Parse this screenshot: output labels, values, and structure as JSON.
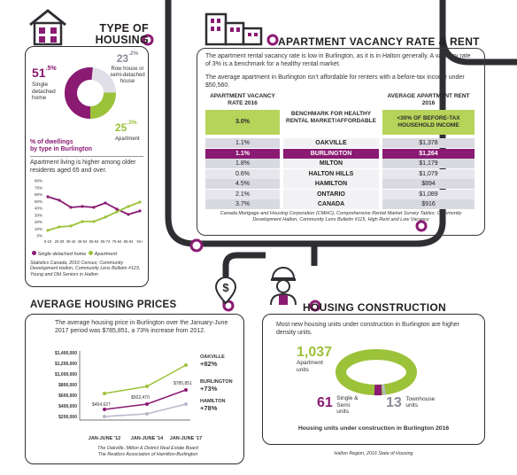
{
  "type_of_housing": {
    "title_line1": "TYPE OF",
    "title_line2": "HOUSING",
    "single_value": "51",
    "single_decimal": ".5%",
    "single_label": "Single detached home",
    "row_value": "23",
    "row_decimal": ".2%",
    "row_label": "Row house or semi-detached house",
    "apt_value": "25",
    "apt_decimal": ".3%",
    "apt_label": "Apartment",
    "caption_line1": "% of dwellings",
    "caption_line2": "by type in Burlington",
    "older_text": "Apartment living is higher among older residents aged 65 and over.",
    "legend_single": "Single detached home",
    "legend_apartment": "Apartment",
    "source": "Statistics Canada, 2016 Census; Community Development Halton, Community Lens Bulletin #123, Young and Old Seniors in Halton",
    "colors": {
      "purple": "#8a1a72",
      "green": "#9cc23a",
      "gray": "#e0dfe8"
    }
  },
  "age_chart": {
    "y_ticks": [
      "80%",
      "70%",
      "60%",
      "50%",
      "40%",
      "30%",
      "20%",
      "10%",
      "0%"
    ],
    "categories": [
      "0-19",
      "20-29",
      "30-44",
      "45-54",
      "55-64",
      "65-74",
      "75-84",
      "85-94",
      "94+"
    ]
  },
  "vacancy": {
    "title": "APARTMENT VACANCY RATE & RENT",
    "para1": "The apartment rental vacancy rate is low in Burlington, as it is in Halton generally. A vacancy rate of 3% is a benchmark for a healthy rental market.",
    "para2": "The average apartment in Burlington isn't affordable for renters with a before-tax income under $50,560.",
    "col1_header": "APARTMENT VACANCY RATE 2016",
    "col3_header": "AVERAGE APARTMENT RENT 2016",
    "benchmark_rate": "3.0%",
    "benchmark_label": "BENCHMARK FOR HEALTHY RENTAL MARKET/AFFORDABLE",
    "benchmark_rent": "<30% OF BEFORE-TAX HOUSEHOLD INCOME",
    "rows": [
      {
        "rate": "1.1%",
        "place": "OAKVILLE",
        "rent": "$1,378"
      },
      {
        "rate": "1.1%",
        "place": "BURLINGTON",
        "rent": "$1,264"
      },
      {
        "rate": "1.8%",
        "place": "MILTON",
        "rent": "$1,179"
      },
      {
        "rate": "0.6%",
        "place": "HALTON HILLS",
        "rent": "$1,079"
      },
      {
        "rate": "4.5%",
        "place": "HAMILTON",
        "rent": "$894"
      },
      {
        "rate": "2.1%",
        "place": "ONTARIO",
        "rent": "$1,089"
      },
      {
        "rate": "3.7%",
        "place": "CANADA",
        "rent": "$916"
      }
    ],
    "source": "Canada Mortgage and Housing Corporation (CMHC), Comprehensive Rental Market Survey Tables; Community Development Halton, Community Lens Bulletin #115, High Rent and Low Vacancy"
  },
  "avg_price": {
    "title": "AVERAGE HOUSING PRICES",
    "text": "The average housing price in Burlington over the January-June 2017 period was $785,851, a 73% increase from 2012.",
    "source1": "The Oakville, Milton & District Real Estate Board",
    "source2": "The Realtors Association of Hamilton-Burlington",
    "icon": "dollar-sign-icon"
  },
  "price_chart": {
    "y_ticks": [
      "$1,400,000",
      "$1,200,000",
      "$1,000,000",
      "$800,000",
      "$600,000",
      "$400,000",
      "$200,000"
    ],
    "x_labels": [
      "JAN-JUNE '12",
      "JAN-JUNE '14",
      "JAN-JUNE '17"
    ],
    "point_labels": [
      "$454,627",
      "$502,470",
      "$785,851"
    ],
    "oakville_label": "OAKVILLE",
    "oakville_change": "+82%",
    "burlington_label": "BURLINGTON",
    "burlington_change": "+73%",
    "hamilton_label": "HAMILTON",
    "hamilton_change": "+78%"
  },
  "construction": {
    "title": "HOUSING CONSTRUCTION",
    "text": "Most new housing units under construction in Burlington are higher density units.",
    "apt_value": "1,037",
    "apt_label": "Apartment units",
    "semi_value": "61",
    "semi_label": "Single & Semi units",
    "town_value": "13",
    "town_label": "Townhouse units",
    "caption": "Housing units under construction in Burlington 2016",
    "source": "Halton Region, 2016 State of Housing",
    "icon": "construction-worker-icon"
  }
}
